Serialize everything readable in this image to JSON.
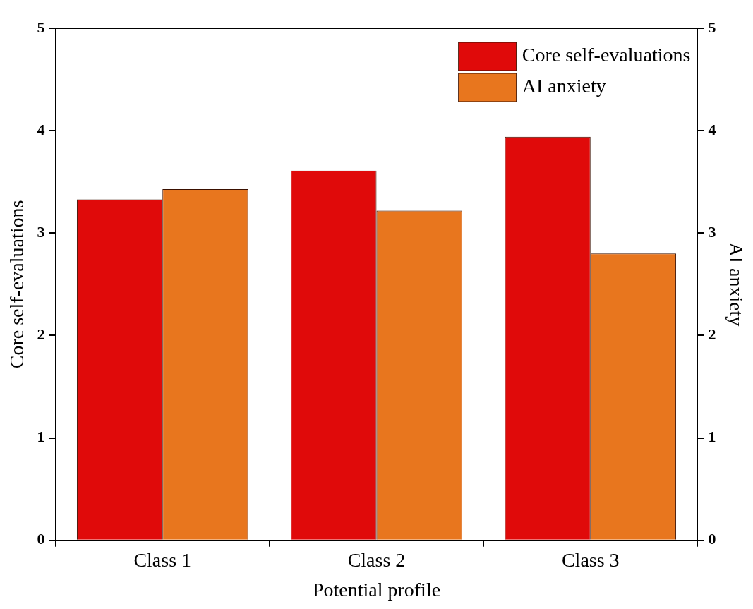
{
  "chart_data": {
    "type": "bar",
    "xlabel": "Potential profile",
    "ylabel": "Core self-evaluations",
    "y2label": "AI anxiety",
    "categories": [
      "Class 1",
      "Class 2",
      "Class 3"
    ],
    "series": [
      {
        "name": "Core self-evaluations",
        "color": "#e00a0a",
        "values": [
          3.33,
          3.61,
          3.94
        ]
      },
      {
        "name": "AI anxiety",
        "color": "#e8761e",
        "values": [
          3.43,
          3.22,
          2.8
        ],
        "axis": "y2"
      }
    ],
    "ylim": [
      0,
      5
    ],
    "yticks": [
      0,
      1,
      2,
      3,
      4,
      5
    ],
    "y2lim": [
      0,
      5
    ],
    "y2ticks": [
      0,
      1,
      2,
      3,
      4,
      5
    ],
    "grid": false,
    "legend": "top right"
  }
}
